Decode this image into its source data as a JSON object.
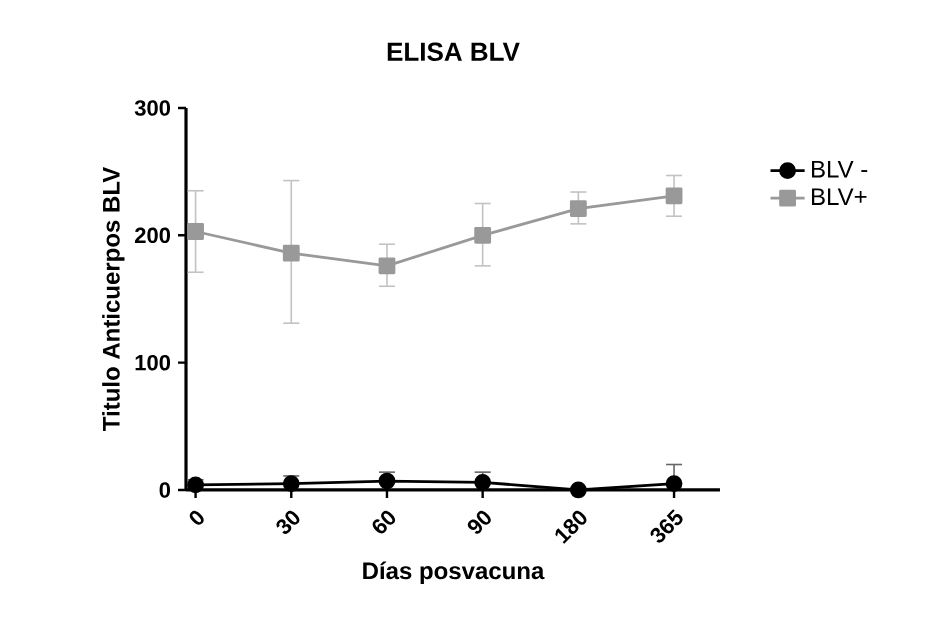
{
  "chart_data": {
    "type": "line",
    "title": "ELISA BLV",
    "xlabel": "Días posvacuna",
    "ylabel": "Titulo Anticuerpos BLV",
    "categories": [
      "0",
      "30",
      "60",
      "90",
      "180",
      "365"
    ],
    "ylim": [
      0,
      300
    ],
    "yticks": [
      0,
      100,
      200,
      300
    ],
    "grid": false,
    "legend": "right",
    "series": [
      {
        "name": "BLV -",
        "color": "#000000",
        "marker": "circle",
        "values": [
          4,
          5,
          7,
          6,
          0,
          5
        ],
        "errors": [
          [
            4,
            8
          ],
          [
            5,
            11
          ],
          [
            7,
            14
          ],
          [
            6,
            14
          ],
          null,
          [
            5,
            20
          ]
        ]
      },
      {
        "name": "BLV+",
        "color": "#999999",
        "marker": "square",
        "values": [
          203,
          186,
          176,
          200,
          221,
          231
        ],
        "errors": [
          [
            171,
            235
          ],
          [
            131,
            243
          ],
          [
            160,
            193
          ],
          [
            176,
            225
          ],
          [
            209,
            234
          ],
          [
            215,
            247
          ]
        ]
      }
    ]
  }
}
